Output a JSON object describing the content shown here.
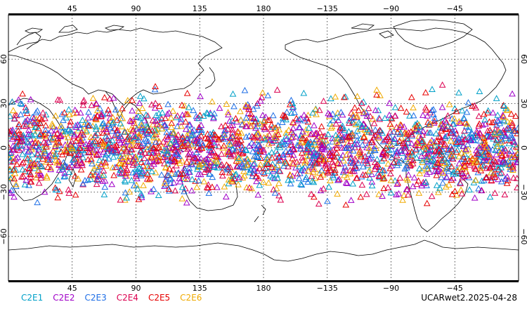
{
  "map": {
    "lon_ticks": [
      {
        "lon": 45,
        "label": "45"
      },
      {
        "lon": 90,
        "label": "90"
      },
      {
        "lon": 135,
        "label": "135"
      },
      {
        "lon": 180,
        "label": "180"
      },
      {
        "lon": 225,
        "label": "−135"
      },
      {
        "lon": 270,
        "label": "−90"
      },
      {
        "lon": 315,
        "label": "−45"
      }
    ],
    "lat_ticks": [
      {
        "lat": 60,
        "label": "60"
      },
      {
        "lat": 30,
        "label": "30"
      },
      {
        "lat": 0,
        "label": "0"
      },
      {
        "lat": -30,
        "label": "−30"
      },
      {
        "lat": -60,
        "label": "−60"
      }
    ],
    "lon_range": [
      0,
      360
    ],
    "lat_range": [
      -90,
      90
    ],
    "grid": true,
    "marker_shape": "triangle",
    "observation_lat_band": [
      -45,
      45
    ]
  },
  "legend": [
    {
      "label": "C2E1",
      "color": "#00a0c8"
    },
    {
      "label": "C2E2",
      "color": "#a000c8"
    },
    {
      "label": "C2E3",
      "color": "#1e6ee6"
    },
    {
      "label": "C2E4",
      "color": "#dc0050"
    },
    {
      "label": "C2E5",
      "color": "#e60000"
    },
    {
      "label": "C2E6",
      "color": "#f0aa00"
    }
  ],
  "footer": {
    "label": "UCARwet2.2025-04-28"
  }
}
